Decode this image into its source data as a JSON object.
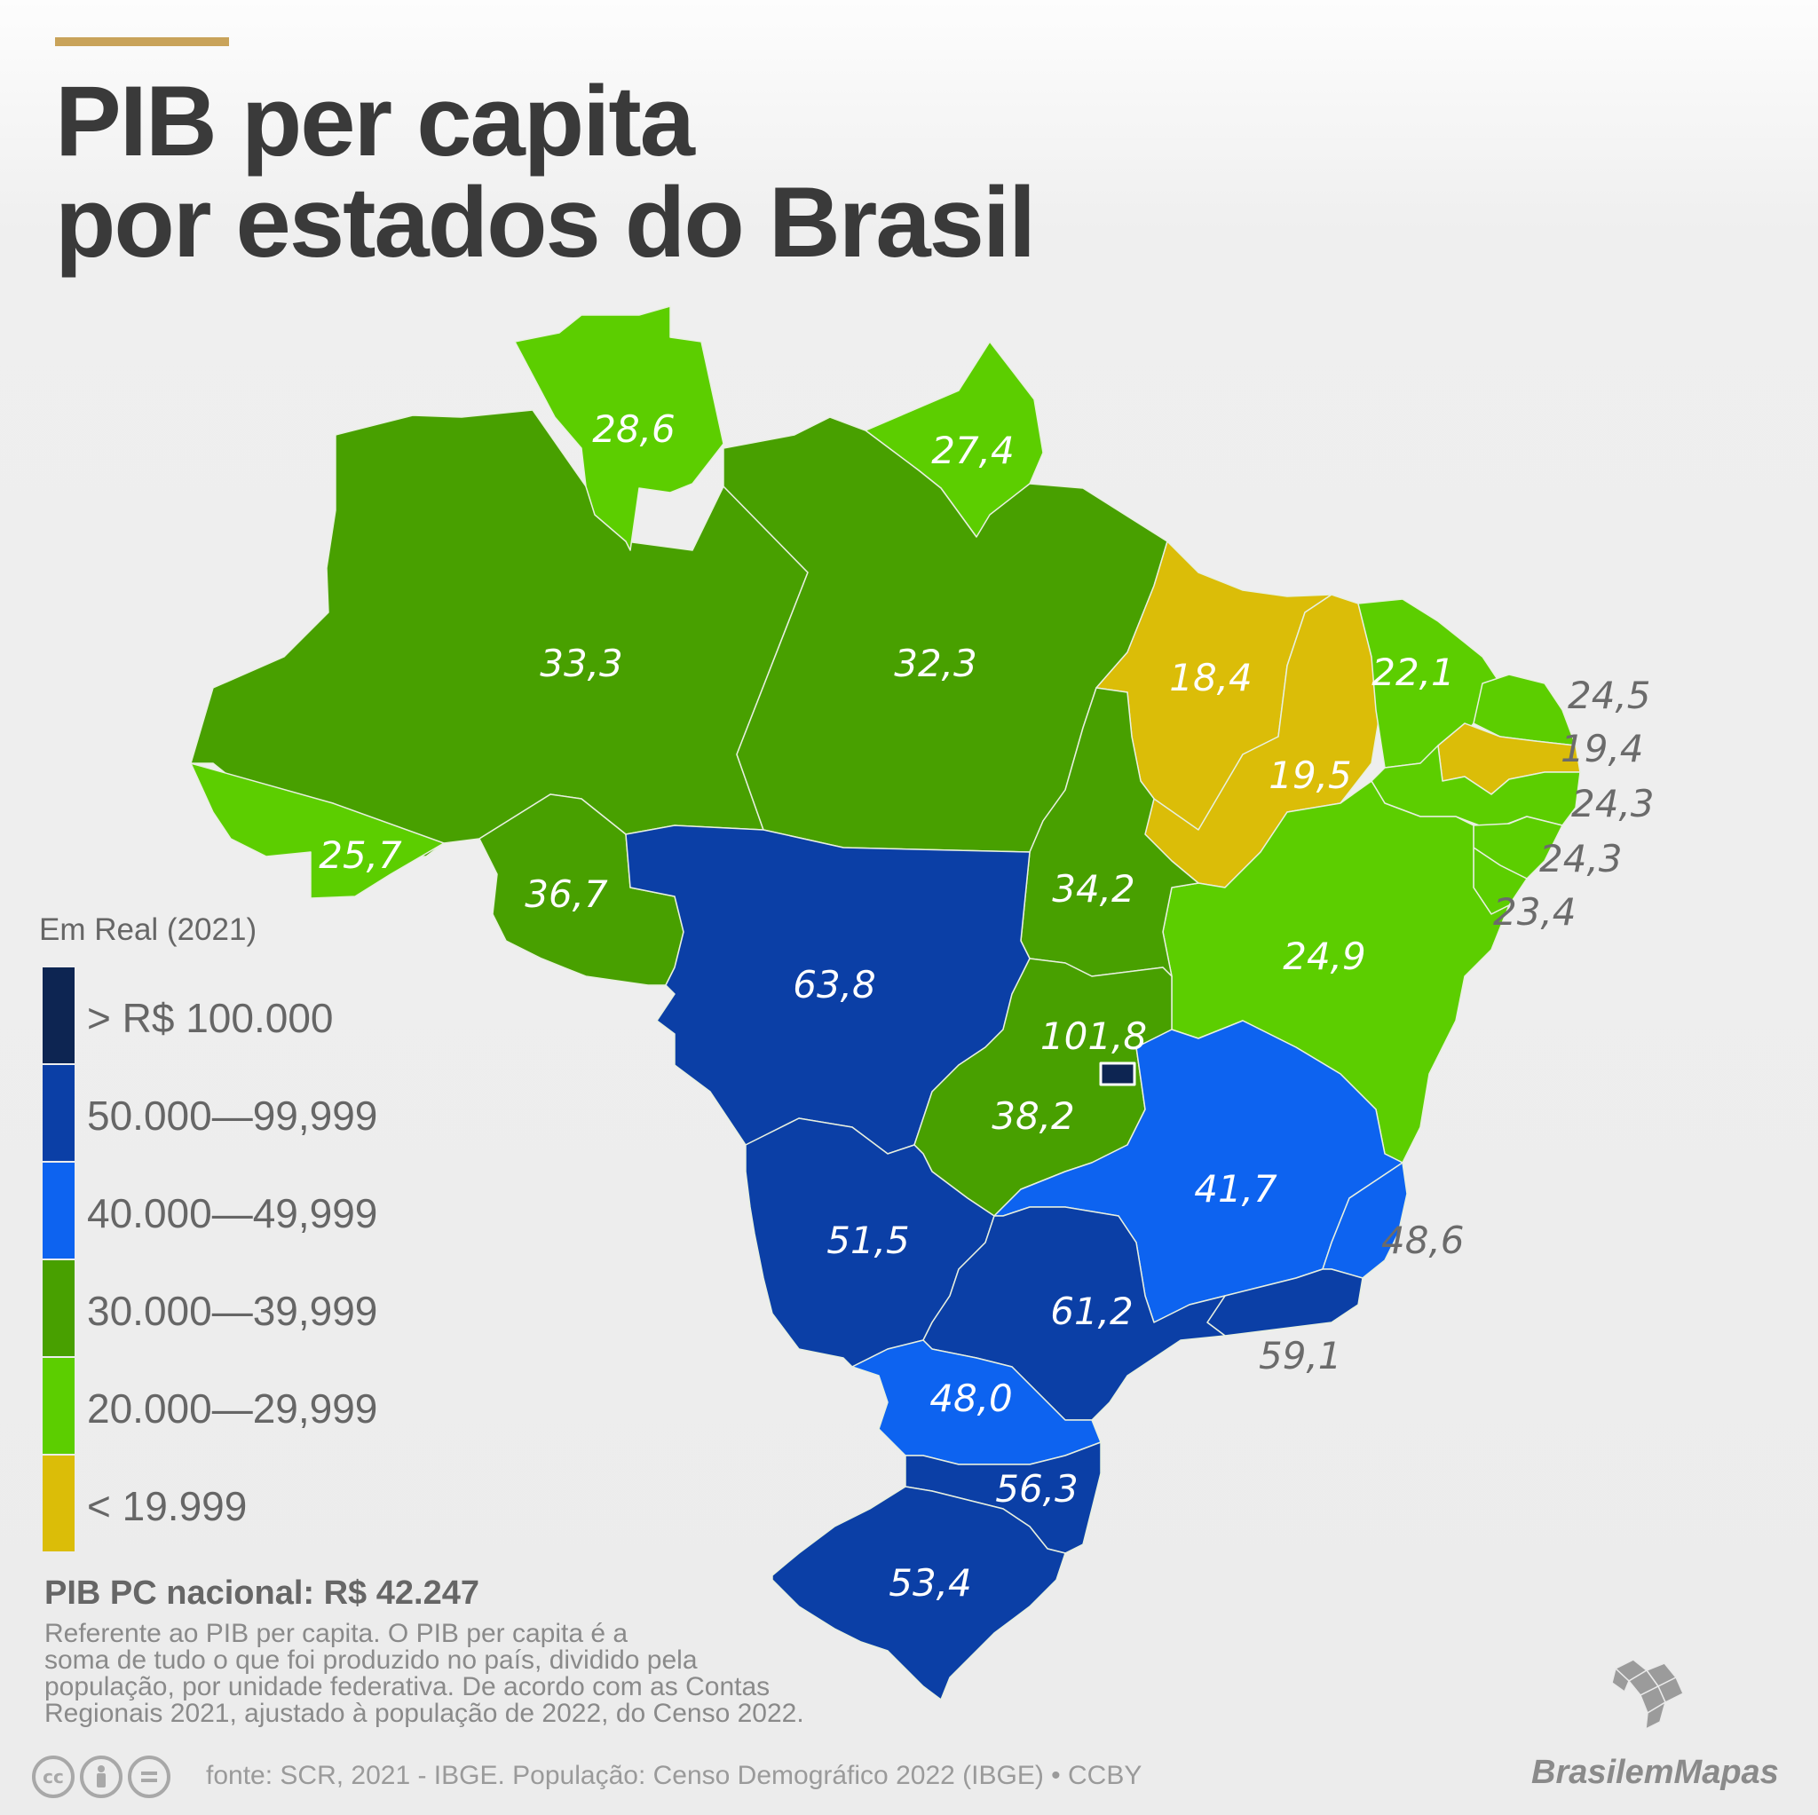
{
  "title": {
    "line1": "PIB per capita",
    "line2": "por estados do Brasil"
  },
  "legend": {
    "title": "Em Real (2021)",
    "items": [
      {
        "label": "> R$ 100.000",
        "color": "#0d2552"
      },
      {
        "label": "50.000—99,999",
        "color": "#0b3fa6"
      },
      {
        "label": "40.000—49,999",
        "color": "#0d63f0"
      },
      {
        "label": "30.000—39,999",
        "color": "#48a000"
      },
      {
        "label": "20.000—29,999",
        "color": "#5cce00"
      },
      {
        "label": "< 19.999",
        "color": "#dbbd08"
      }
    ]
  },
  "map_values": {
    "roraima": "28,6",
    "amapa": "27,4",
    "amazonas": "33,3",
    "para": "32,3",
    "maranhao": "18,4",
    "piaui": "19,5",
    "ceara": "22,1",
    "rio_grande_do_norte": "24,5",
    "paraiba": "19,4",
    "pernambuco": "24,3",
    "alagoas": "24,3",
    "sergipe": "23,4",
    "acre": "25,7",
    "rondonia": "36,7",
    "tocantins": "34,2",
    "bahia": "24,9",
    "mato_grosso": "63,8",
    "distrito_federal": "101,8",
    "goias": "38,2",
    "minas_gerais": "41,7",
    "espirito_santo": "48,6",
    "mato_grosso_do_sul": "51,5",
    "sao_paulo": "61,2",
    "rio_de_janeiro": "59,1",
    "parana": "48,0",
    "santa_catarina": "56,3",
    "rio_grande_do_sul": "53,4"
  },
  "national": "PIB PC nacional: R$ 42.247",
  "description": [
    "Referente ao PIB per capita. O PIB per capita é a",
    "soma de tudo o que foi produzido no país, dividido pela",
    "população, por unidade federativa. De acordo com as Contas",
    "Regionais 2021, ajustado à população de 2022, do Censo 2022."
  ],
  "cc_icons": [
    "cc",
    "by",
    "nd"
  ],
  "source": "fonte: SCR, 2021 - IBGE. População: Censo Demográfico 2022 (IBGE) • CCBY",
  "brand": "BrasilemMapas"
}
